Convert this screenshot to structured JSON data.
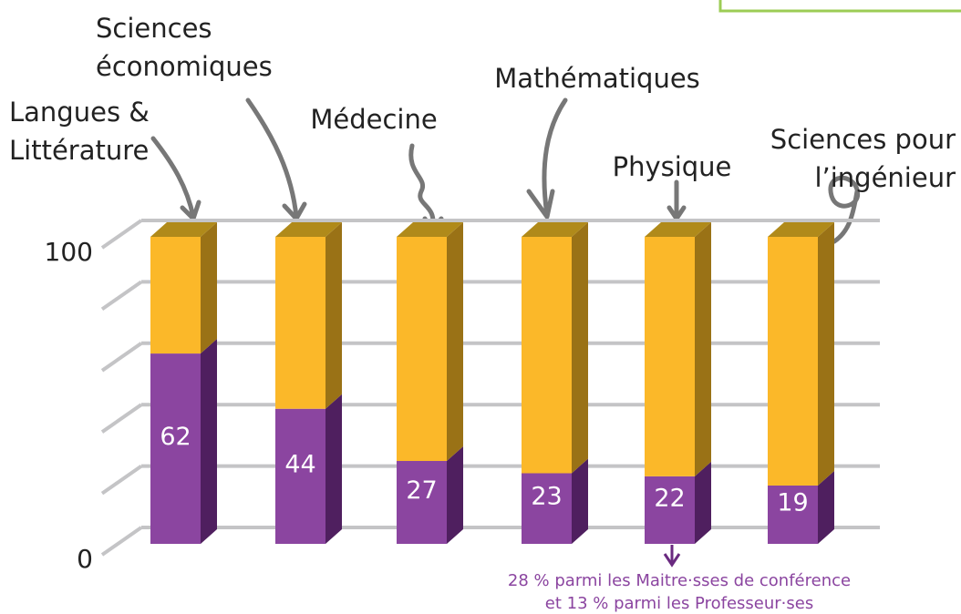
{
  "chart_data": {
    "type": "bar3d-stacked",
    "categories": [
      [
        "Langues &",
        "Littérature"
      ],
      [
        "Sciences",
        "économiques"
      ],
      [
        "Médecine"
      ],
      [
        "Mathématiques"
      ],
      [
        "Physique"
      ],
      [
        "Sciences pour",
        "l’ingénieur"
      ]
    ],
    "series": [
      {
        "color": "#8b45a0",
        "side_color": "#4f1f5f",
        "values": [
          62,
          44,
          27,
          23,
          22,
          19
        ]
      },
      {
        "color": "#fbb829",
        "side_color": "#9a7216",
        "top_color": "#b08a1a",
        "values": [
          38,
          56,
          73,
          77,
          78,
          81
        ]
      }
    ],
    "ylim": [
      0,
      100
    ],
    "yticks": [
      0,
      100
    ],
    "grid_lines": [
      0,
      20,
      40,
      60,
      80,
      100
    ],
    "annotation": [
      "28 % parmi les Maitre·sses de conférence",
      "et 13 % parmi les Professeur·ses"
    ]
  }
}
